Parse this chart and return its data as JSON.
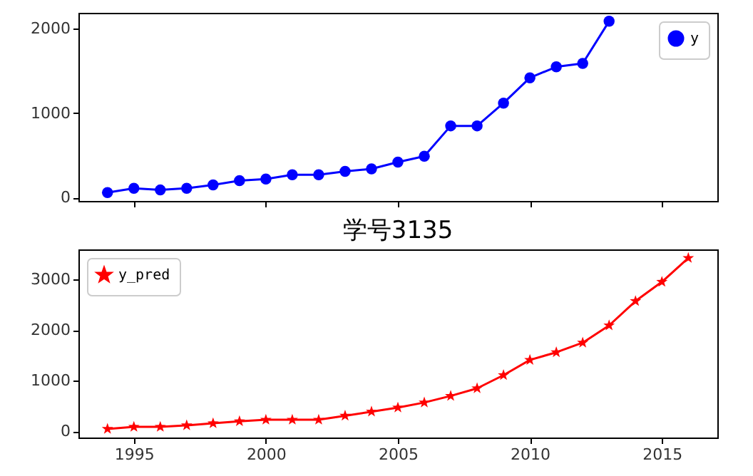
{
  "chart_data": [
    {
      "type": "line",
      "x": [
        1994,
        1995,
        1996,
        1997,
        1998,
        1999,
        2000,
        2001,
        2002,
        2003,
        2004,
        2005,
        2006,
        2007,
        2008,
        2009,
        2010,
        2011,
        2012,
        2013
      ],
      "series": [
        {
          "name": "y",
          "color": "#0000ff",
          "values": [
            60,
            110,
            90,
            110,
            150,
            200,
            220,
            270,
            270,
            310,
            340,
            420,
            490,
            850,
            850,
            1120,
            1420,
            1550,
            1590,
            2090
          ]
        }
      ],
      "xlim": [
        1992.9,
        2017.1
      ],
      "xticks": [
        1995,
        2000,
        2005,
        2010,
        2015
      ],
      "ylim": [
        -40,
        2190
      ],
      "yticks": [
        0,
        1000,
        2000
      ],
      "tick_labels": "y",
      "legend": "top right",
      "marker": "circle",
      "grid": false
    },
    {
      "type": "line",
      "title": "学号3135",
      "x": [
        1994,
        1995,
        1996,
        1997,
        1998,
        1999,
        2000,
        2001,
        2002,
        2003,
        2004,
        2005,
        2006,
        2007,
        2008,
        2009,
        2010,
        2011,
        2012,
        2013,
        2014,
        2015,
        2016
      ],
      "series": [
        {
          "name": "y_pred",
          "color": "#ff0000",
          "values": [
            50,
            90,
            90,
            120,
            160,
            200,
            230,
            230,
            230,
            310,
            390,
            470,
            570,
            700,
            850,
            1110,
            1410,
            1560,
            1750,
            2090,
            2570,
            2950,
            3420
          ]
        }
      ],
      "xlim": [
        1992.9,
        2017.1
      ],
      "xticks": [
        1995,
        2000,
        2005,
        2010,
        2015
      ],
      "ylim": [
        -120,
        3590
      ],
      "yticks": [
        0,
        1000,
        2000,
        3000
      ],
      "legend": "top left",
      "marker": "star",
      "grid": false
    }
  ]
}
